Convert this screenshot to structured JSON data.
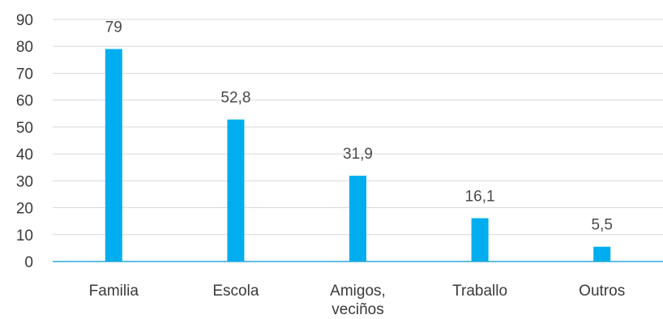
{
  "chart_data": {
    "type": "bar",
    "categories": [
      "Familia",
      "Escola",
      "Amigos,\nveciños",
      "Traballo",
      "Outros"
    ],
    "values": [
      79,
      52.8,
      31.9,
      16.1,
      5.5
    ],
    "data_labels": [
      "79",
      "52,8",
      "31,9",
      "16,1",
      "5,5"
    ],
    "title": "",
    "xlabel": "",
    "ylabel": "",
    "ylim": [
      0,
      90
    ],
    "yticks": [
      0,
      10,
      20,
      30,
      40,
      50,
      60,
      70,
      80,
      90
    ],
    "grid": true,
    "bar_color": "#00aeef",
    "axis_color": "#2aa8d8",
    "grid_color": "#d9d9d9"
  }
}
